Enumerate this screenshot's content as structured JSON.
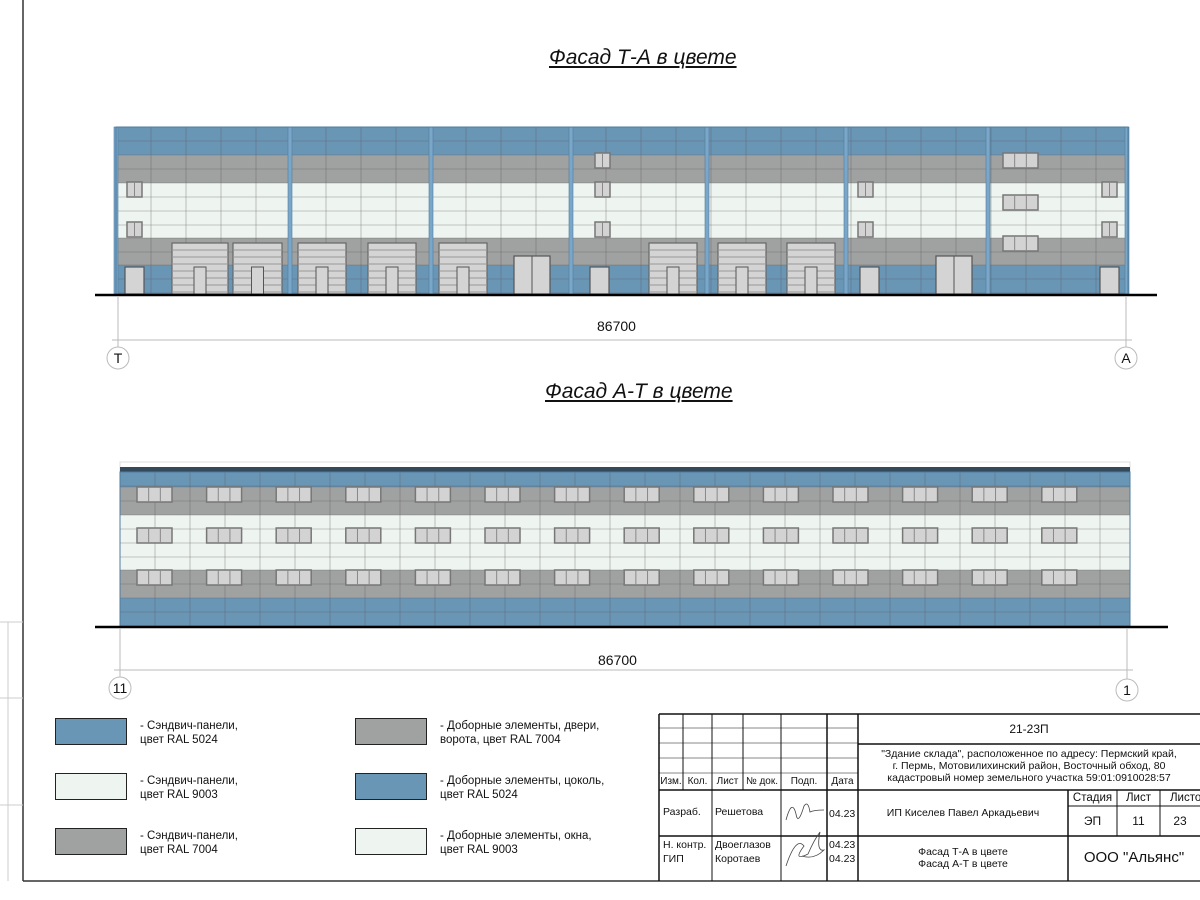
{
  "colors": {
    "blue_5024": "#6a96b6",
    "white_9003": "#eef4f0",
    "grey_7004": "#a0a1a1",
    "frame": "#222222"
  },
  "facade_top": {
    "title": "Фасад Т-А в цвете",
    "dimension": "86700",
    "axis_left": "Т",
    "axis_right": "А"
  },
  "facade_bottom": {
    "title": "Фасад А-Т в цвете",
    "dimension": "86700",
    "axis_left": "11",
    "axis_right": "1"
  },
  "legend": [
    {
      "color": "#6a96b6",
      "text": "- Сэндвич-панели,\nцвет RAL 5024"
    },
    {
      "color": "#eef4f0",
      "text": "- Сэндвич-панели,\nцвет RAL 9003"
    },
    {
      "color": "#a0a1a1",
      "text": "- Сэндвич-панели,\nцвет RAL 7004"
    },
    {
      "color": "#a0a1a1",
      "text": "- Доборные элементы, двери,\nворота, цвет RAL 7004"
    },
    {
      "color": "#6a96b6",
      "text": "- Доборные элементы, цоколь,\nцвет RAL 5024"
    },
    {
      "color": "#eef4f0",
      "text": "- Доборные элементы, окна,\nцвет RAL 9003"
    }
  ],
  "title_block": {
    "code": "21-23П",
    "object": "\"Здание склада\", расположенное по адресу: Пермский край,\nг. Пермь, Мотовилихинский район, Восточный обход, 80\nкадастровый номер земельного участка 59:01:0910028:57",
    "headers": [
      "Изм.",
      "Кол.",
      "Лист",
      "№ док.",
      "Подп.",
      "Дата"
    ],
    "rows": [
      {
        "role": "Разраб.",
        "name": "Решетова",
        "date": "04.23"
      },
      {
        "role": "Н. контр.",
        "name": "Двоеглазов",
        "date": "04.23"
      },
      {
        "role": "ГИП",
        "name": "Коротаев",
        "date": "04.23"
      }
    ],
    "author": "ИП Киселев Павел Аркадьевич",
    "stage_label": "Стадия",
    "sheet_label": "Лист",
    "sheets_label": "Листов",
    "stage": "ЭП",
    "sheet": "11",
    "sheets": "23",
    "sheet_title": "Фасад Т-А в цвете\nФасад А-Т в цвете",
    "company": "ООО \"Альянс\""
  }
}
